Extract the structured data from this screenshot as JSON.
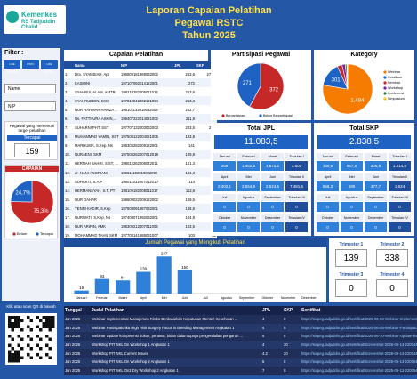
{
  "header": {
    "logo_line1": "Kemenkes",
    "logo_line2": "RS Tadjuddin Chalid",
    "title_lines": [
      "Laporan Capaian Pelatihan",
      "Pegawai RSTC",
      "Tahun 2025"
    ]
  },
  "sidebar": {
    "filter_label": "Filter :",
    "buttons": [
      "LIFE BREATH",
      "RSTC",
      "LIFE BREATH"
    ],
    "dropdowns": [
      "Name",
      "NIP"
    ],
    "target_label": "Pegawai yang memenuhi target pelatihan",
    "target_status": "Tercapai",
    "target_value": "159",
    "qr_caption": "Klik atau scan QR di bawah"
  },
  "table": {
    "title": "Capaian Pelatihan",
    "columns": [
      "Nama",
      "NIP",
      "JPL",
      "SKP"
    ],
    "rows": [
      [
        "1.",
        "Dra. SYAMSIAH, Apt",
        "196809181989032002",
        "263,6",
        "271,8"
      ],
      [
        "2.",
        "KASMINI",
        "197107092014122001",
        "272",
        "0"
      ],
      [
        "3.",
        "SYAHRUL ALAM, AMTR",
        "198210282005011013",
        "263,6",
        "0"
      ],
      [
        "4.",
        "SYAHRUDDIN, SKM",
        "197810042002121004",
        "253,3",
        "0"
      ],
      [
        "5.",
        "NUR RAHMAH HAMZAH,...",
        "199101132019032009",
        "212,7",
        "88"
      ],
      [
        "6.",
        "Ns. FATTHURA ASKIN,...",
        "199407222014021002",
        "211,8",
        "91"
      ],
      [
        "7.",
        "SUHARNI PHT, SST",
        "197707132003032003",
        "203,5",
        "22,8"
      ],
      [
        "8.",
        "MUHAMMAD YAMIN, SST",
        "197508122004021005",
        "193,8",
        "25"
      ],
      [
        "9.",
        "MARHUMA, S.Kep, Ns",
        "198303282009122001",
        "141",
        "32"
      ],
      [
        "10.",
        "NURAENI, SKM",
        "197508262007012019",
        "129,8",
        "10"
      ],
      [
        "11.",
        "HERNAH BAHRI, S.ST, M...",
        "198012262006042011",
        "121,3",
        "24"
      ],
      [
        "12.",
        "dr. NANI ANGRIANI",
        "198611192019022002",
        "121,3",
        "14"
      ],
      [
        "13.",
        "SUHARTI, S.A.P",
        "198011032007012010",
        "114",
        "0"
      ],
      [
        "14.",
        "HERMANSYAH, S.T, PT",
        "198109182008011017",
        "113,8",
        "56"
      ],
      [
        "15.",
        "NUR DAHAR",
        "198609022009122002",
        "109,5",
        "12"
      ],
      [
        "16.",
        "YENNI KADIR, S.Kep",
        "197608091987032001",
        "106,5",
        "12"
      ],
      [
        "17.",
        "NURWATI, S.Kep, Ns",
        "197408071992032001",
        "104,8",
        "27"
      ],
      [
        "18.",
        "NUR ARIFIN, AMK",
        "198309212007011003",
        "103,5",
        "27"
      ],
      [
        "19.",
        "MOHAMMAD TAHIL SKM",
        "197708141988031007",
        "103",
        "32"
      ]
    ]
  },
  "jpl": {
    "title": "Total JPL",
    "total": "11.083,5",
    "months": [
      [
        "Januari",
        "269"
      ],
      [
        "Februari",
        "1.462,8"
      ],
      [
        "Maret",
        "1.870,2"
      ],
      [
        "Triwulan I",
        "3.602"
      ],
      [
        "April",
        "2.402,1"
      ],
      [
        "Mei",
        "2.554,9"
      ],
      [
        "Juni",
        "2.524,5"
      ],
      [
        "Triwulan II",
        "7.481,5"
      ],
      [
        "Juli",
        "0"
      ],
      [
        "Agustus",
        "0"
      ],
      [
        "September",
        "0"
      ],
      [
        "Triwulan III",
        "0"
      ],
      [
        "Oktober",
        "0"
      ],
      [
        "November",
        "0"
      ],
      [
        "Desember",
        "0"
      ],
      [
        "Triwulan IV",
        "0"
      ]
    ]
  },
  "skp": {
    "title": "Total SKP",
    "total": "2.838,5",
    "months": [
      [
        "Januari",
        "140,5"
      ],
      [
        "Februari",
        "567,5"
      ],
      [
        "Maret",
        "506,5"
      ],
      [
        "Triwulan I",
        "1.214,5"
      ],
      [
        "April",
        "556,3"
      ],
      [
        "Mei",
        "590"
      ],
      [
        "Juni",
        "477,7"
      ],
      [
        "Triwulan II",
        "1.624"
      ],
      [
        "Juli",
        "0"
      ],
      [
        "Agustus",
        "0"
      ],
      [
        "September",
        "0"
      ],
      [
        "Triwulan III",
        "0"
      ],
      [
        "Oktober",
        "0"
      ],
      [
        "November",
        "0"
      ],
      [
        "Desember",
        "0"
      ],
      [
        "Triwulan IV",
        "0"
      ]
    ]
  },
  "trimesters": [
    [
      "Trimester 1",
      "139"
    ],
    [
      "Trimester 2",
      "338"
    ],
    [
      "Trimester 3",
      "0"
    ],
    [
      "Trimester 4",
      "0"
    ]
  ],
  "list": {
    "columns": [
      "Tanggal",
      "Judul Pelatihan",
      "JPL",
      "SKP",
      "Sertifikat"
    ],
    "rows": [
      [
        "Jun 2025",
        "Webinar Implementasi Manajemen Risiko Berdasarkan Keputusan Menteri Kesehatan ...",
        "4",
        "0",
        "https://siapeg.tadjuddin.go.id/sertifikat/2025-06-03-Webinar-Implementasi.pdf"
      ],
      [
        "Jun 2025",
        "Webinar Partisipatorika High Risk Surgery Focus in Bleeding Management Angkatan 1",
        "4",
        "0",
        "https://siapeg.tadjuddin.go.id/sertifikat/2025-06-05-Webinar-Partisipatorika.pdf"
      ],
      [
        "Jun 2025",
        "Webinar Update kompetensi dokter, perawat, bidan dalam upaya pengendalian pengaruh ...",
        "5",
        "0",
        "https://siapeg.tadjuddin.go.id/sertifikat/2025-06-10-Webinar-Update-kompetensi.pdf"
      ],
      [
        "Jun 2025",
        "Workshop PIT NKL On Workshop 1 Angkatan 1",
        "4",
        "30",
        "https://siapeg.tadjuddin.go.id/sertifikat/Screenshot-2025-06-13-220044.pdf"
      ],
      [
        "Jun 2025",
        "Workshop PIT NKL Current Issues",
        "4.2",
        "20",
        "https://siapeg.tadjuddin.go.id/sertifikat/Screenshot-2025-06-13-220044.pdf"
      ],
      [
        "Jun 2025",
        "Workshop PIT NKL On Workshop 2 Angkatan 1",
        "5",
        "0",
        "https://siapeg.tadjuddin.go.id/sertifikat/Screenshot-2025-06-13-220054.pdf"
      ],
      [
        "Jun 2025",
        "Workshop PIT NKL On2 Dry Workshop 2 Angkatan 1",
        "7",
        "0",
        "https://siapeg.tadjuddin.go.id/sertifikat/Screenshot-2025-06-13-220054.pdf"
      ]
    ]
  },
  "chart_data": [
    {
      "type": "pie",
      "title": "Partisipasi Pegawai",
      "labels": [
        "Berpartisipasi",
        "Belum Berpartisipasi"
      ],
      "values": [
        372,
        271
      ],
      "colors": [
        "#c62828",
        "#1e63c4"
      ]
    },
    {
      "type": "pie",
      "title": "Kategory",
      "labels": [
        "Webinar",
        "Pelatihan",
        "Seminar",
        "Workshop",
        "Konferensi",
        "Simposium"
      ],
      "values": [
        1484,
        301,
        60,
        40,
        20,
        10
      ],
      "value_labels": [
        "1.484",
        "301",
        null,
        null,
        null,
        null
      ],
      "colors": [
        "#f57c00",
        "#1e63c4",
        "#c62828",
        "#7b1fa2",
        "#2e7d32",
        "#fbc02d"
      ]
    },
    {
      "type": "pie",
      "title": "CAPAIAN",
      "labels": [
        "Belum",
        "Tercapai"
      ],
      "values": [
        75.3,
        24.7
      ],
      "value_labels": [
        "75,3%",
        "24,7%"
      ],
      "colors": [
        "#c62828",
        "#1e63c4"
      ]
    },
    {
      "type": "bar",
      "title": "Jumlah Pegawai yang Mengikuti Pelatihan",
      "categories": [
        "Januari",
        "Februari",
        "Maret",
        "April",
        "Mei",
        "Juni",
        "Juli",
        "Agustus",
        "September",
        "Oktober",
        "November",
        "Desember"
      ],
      "values": [
        19,
        93,
        84,
        139,
        237,
        150,
        0,
        0,
        0,
        0,
        0,
        0
      ],
      "color": "#2f80d8",
      "ylim": [
        0,
        250
      ]
    }
  ]
}
